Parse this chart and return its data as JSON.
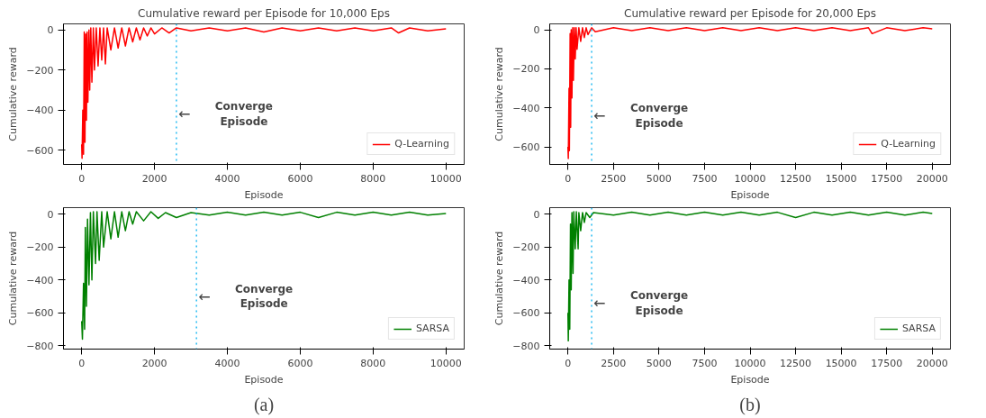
{
  "chart_data": [
    {
      "type": "line",
      "title": "Cumulative reward per Episode for 10,000 Eps",
      "xlabel": "Episode",
      "ylabel": "Cumulative reward",
      "xlim": [
        -500,
        10500
      ],
      "ylim": [
        -670,
        30
      ],
      "xticks": [
        0,
        2000,
        4000,
        6000,
        8000,
        10000
      ],
      "yticks": [
        -600,
        -400,
        -200,
        0
      ],
      "grid": false,
      "legend": "bottom right",
      "line_style": "solid",
      "series": [
        {
          "name": "Q-Learning",
          "color": "#ff0000",
          "x": [
            0,
            10,
            30,
            50,
            70,
            90,
            110,
            130,
            150,
            170,
            200,
            220,
            250,
            280,
            320,
            350,
            400,
            450,
            500,
            550,
            600,
            650,
            700,
            800,
            900,
            1000,
            1100,
            1200,
            1300,
            1400,
            1500,
            1600,
            1700,
            1800,
            1900,
            2000,
            2200,
            2400,
            2600,
            3000,
            3500,
            4000,
            4500,
            5000,
            5500,
            6000,
            6500,
            7000,
            7500,
            8000,
            8500,
            8700,
            9000,
            9500,
            10000
          ],
          "values": [
            -570,
            -640,
            -400,
            -620,
            -10,
            -560,
            -20,
            -450,
            -10,
            -360,
            0,
            -300,
            10,
            -260,
            10,
            -200,
            10,
            -180,
            10,
            -150,
            10,
            -170,
            10,
            -100,
            10,
            -90,
            10,
            -80,
            10,
            -60,
            10,
            -50,
            10,
            -30,
            10,
            -20,
            10,
            -15,
            10,
            -5,
            10,
            -5,
            10,
            -10,
            10,
            -5,
            10,
            -5,
            10,
            -5,
            10,
            -15,
            10,
            -5,
            5
          ]
        }
      ],
      "ref_lines": [
        {
          "axis": "x",
          "value": 2600,
          "color": "#00b0f0",
          "line_style": "dotted"
        }
      ],
      "annotations": [
        {
          "text": "←",
          "x": 2600,
          "y": -420
        },
        "Converge\nEpisode"
      ]
    },
    {
      "type": "line",
      "title": "Cumulative reward per Episode for 20,000 Eps",
      "xlabel": "Episode",
      "ylabel": "Cumulative reward",
      "xlim": [
        -1000,
        21000
      ],
      "ylim": [
        -690,
        30
      ],
      "xticks": [
        0,
        2500,
        5000,
        7500,
        10000,
        12500,
        15000,
        17500,
        20000
      ],
      "yticks": [
        -600,
        -400,
        -200,
        0
      ],
      "grid": false,
      "legend": "bottom right",
      "line_style": "solid",
      "series": [
        {
          "name": "Q-Learning",
          "color": "#ff0000",
          "x": [
            0,
            20,
            60,
            80,
            120,
            150,
            180,
            220,
            260,
            300,
            350,
            400,
            450,
            500,
            600,
            700,
            800,
            900,
            1000,
            1100,
            1300,
            1500,
            2500,
            3500,
            4500,
            5500,
            6500,
            7500,
            8500,
            9500,
            10500,
            11500,
            12500,
            13500,
            14500,
            15500,
            16500,
            16700,
            17500,
            18500,
            19500,
            20000
          ],
          "values": [
            -600,
            -660,
            -300,
            -620,
            -20,
            -500,
            0,
            -350,
            10,
            -260,
            10,
            -150,
            10,
            -100,
            10,
            -60,
            10,
            -40,
            10,
            -25,
            10,
            -10,
            10,
            -5,
            10,
            -5,
            10,
            -5,
            10,
            -5,
            10,
            -5,
            10,
            -5,
            10,
            -5,
            10,
            -20,
            10,
            -5,
            10,
            5
          ]
        }
      ],
      "ref_lines": [
        {
          "axis": "x",
          "value": 1300,
          "color": "#00b0f0",
          "line_style": "dotted"
        }
      ],
      "annotations": [
        {
          "text": "←",
          "x": 1300,
          "y": -440
        },
        "Converge\nEpisode"
      ]
    },
    {
      "type": "line",
      "xlabel": "Episode",
      "ylabel": "Cumulative reward",
      "xlim": [
        -500,
        10500
      ],
      "ylim": [
        -820,
        40
      ],
      "xticks": [
        0,
        2000,
        4000,
        6000,
        8000,
        10000
      ],
      "yticks": [
        -800,
        -600,
        -400,
        -200,
        0
      ],
      "grid": false,
      "legend": "bottom right",
      "line_style": "solid",
      "series": [
        {
          "name": "SARSA",
          "color": "#008000",
          "x": [
            0,
            20,
            50,
            80,
            100,
            130,
            160,
            200,
            240,
            280,
            320,
            380,
            420,
            480,
            550,
            600,
            700,
            800,
            900,
            1000,
            1100,
            1200,
            1300,
            1400,
            1500,
            1700,
            1900,
            2100,
            2300,
            2600,
            3000,
            3500,
            4000,
            4500,
            5000,
            5500,
            6000,
            6500,
            7000,
            7500,
            8000,
            8500,
            9000,
            9500,
            10000
          ],
          "values": [
            -650,
            -760,
            -420,
            -700,
            -80,
            -560,
            -30,
            -430,
            10,
            -400,
            15,
            -300,
            15,
            -280,
            15,
            -200,
            15,
            -150,
            15,
            -140,
            15,
            -100,
            15,
            -60,
            15,
            -40,
            15,
            -25,
            10,
            -20,
            10,
            -5,
            12,
            -5,
            12,
            -5,
            12,
            -20,
            12,
            -5,
            12,
            -5,
            12,
            -5,
            5
          ]
        }
      ],
      "ref_lines": [
        {
          "axis": "x",
          "value": 3150,
          "color": "#00b0f0",
          "line_style": "dotted"
        }
      ],
      "annotations": [
        {
          "text": "←",
          "x": 3150,
          "y": -500
        },
        "Converge\nEpisode",
        "(a)"
      ]
    },
    {
      "type": "line",
      "xlabel": "Episode",
      "ylabel": "Cumulative reward",
      "xlim": [
        -1000,
        21000
      ],
      "ylim": [
        -820,
        40
      ],
      "xticks": [
        0,
        2500,
        5000,
        7500,
        10000,
        12500,
        15000,
        17500,
        20000
      ],
      "yticks": [
        -800,
        -600,
        -400,
        -200,
        0
      ],
      "grid": false,
      "legend": "bottom right",
      "line_style": "solid",
      "series": [
        {
          "name": "SARSA",
          "color": "#008000",
          "x": [
            0,
            20,
            60,
            100,
            140,
            180,
            220,
            280,
            320,
            400,
            460,
            560,
            600,
            700,
            800,
            900,
            1000,
            1200,
            1400,
            2500,
            3500,
            4500,
            5500,
            6500,
            7500,
            8500,
            9500,
            10500,
            11500,
            12500,
            13500,
            14500,
            15500,
            16500,
            17500,
            18500,
            19500,
            20000
          ],
          "values": [
            -600,
            -770,
            -400,
            -700,
            -60,
            -460,
            10,
            -360,
            15,
            -210,
            15,
            -210,
            10,
            -100,
            10,
            -50,
            10,
            -20,
            10,
            -5,
            12,
            -5,
            12,
            -5,
            12,
            -5,
            12,
            -5,
            12,
            -20,
            12,
            -5,
            12,
            -5,
            12,
            -5,
            12,
            5
          ]
        }
      ],
      "ref_lines": [
        {
          "axis": "x",
          "value": 1300,
          "color": "#00b0f0",
          "line_style": "dotted"
        }
      ],
      "annotations": [
        {
          "text": "←",
          "x": 1300,
          "y": -540
        },
        "Converge\nEpisode",
        "(b)"
      ]
    }
  ]
}
